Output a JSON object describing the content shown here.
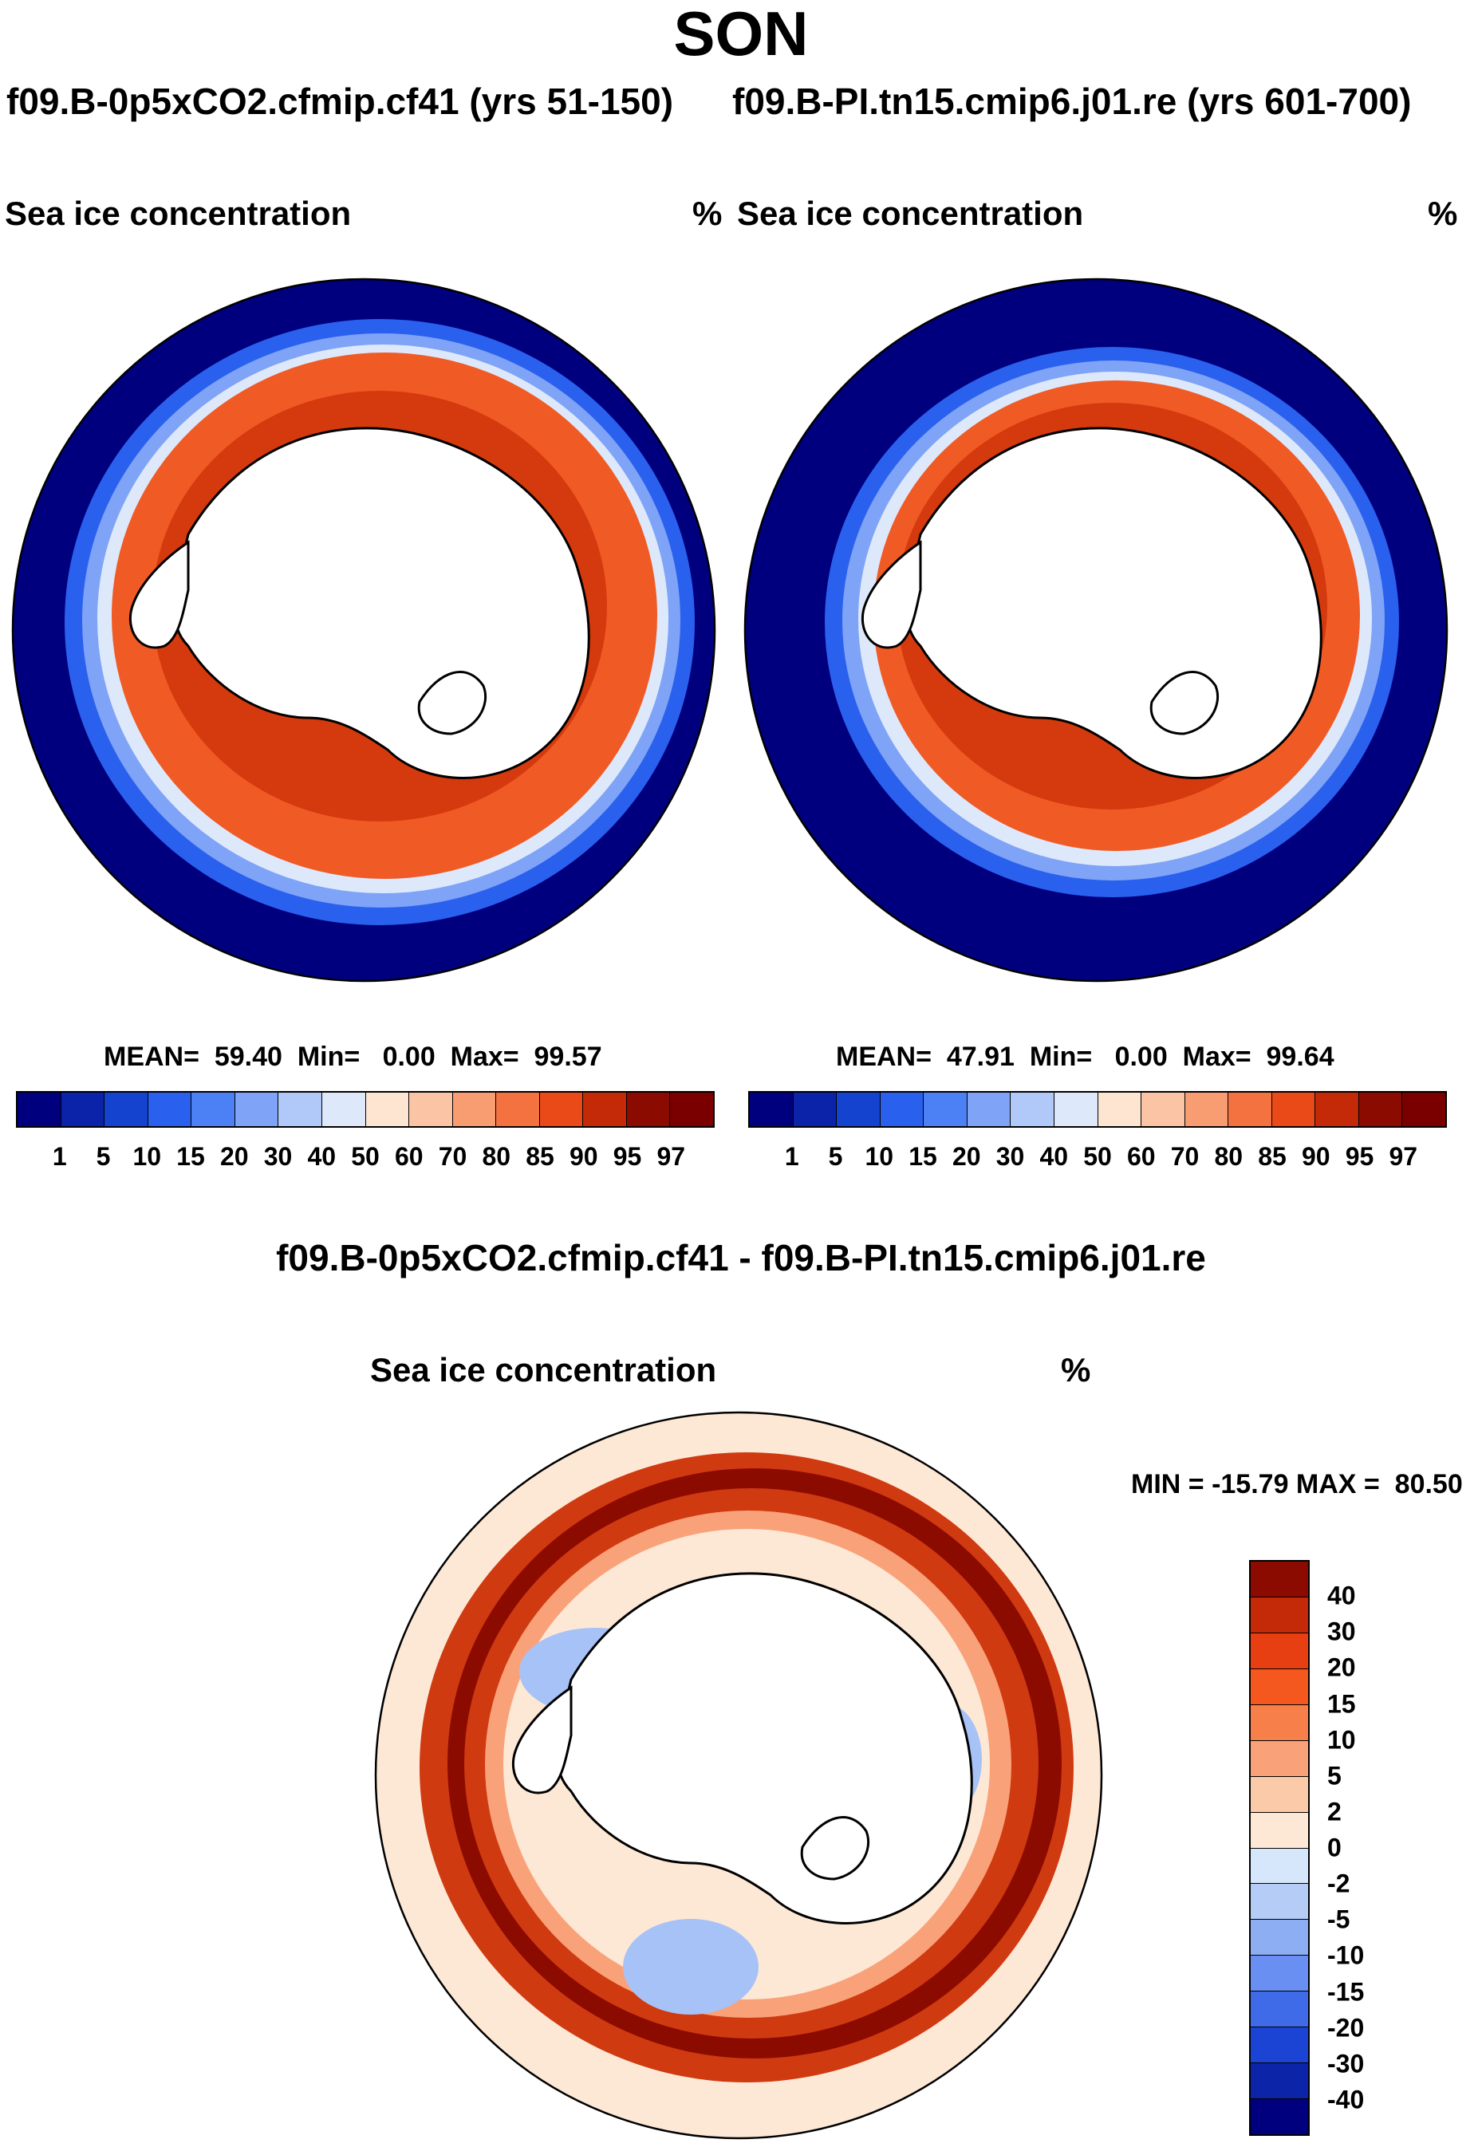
{
  "figure": {
    "season": "SON",
    "case_a": "f09.B-0p5xCO2.cfmip.cf41 (yrs 51-150)",
    "case_b": "f09.B-PI.tn15.cmip6.j01.re (yrs 601-700)",
    "diff_title": "f09.B-0p5xCO2.cfmip.cf41 - f09.B-PI.tn15.cmip6.j01.re"
  },
  "panels": {
    "left": {
      "variable": "Sea ice concentration",
      "units": "%",
      "stats": "MEAN=  59.40  Min=   0.00  Max=  99.57"
    },
    "right": {
      "variable": "Sea ice concentration",
      "units": "%",
      "stats": "MEAN=  47.91  Min=   0.00  Max=  99.64"
    },
    "diff": {
      "variable": "Sea ice concentration",
      "units": "%",
      "stats": "MIN = -15.79 MAX =  80.50"
    }
  },
  "colorbar_abs": {
    "labels": [
      "1",
      "5",
      "10",
      "15",
      "20",
      "30",
      "40",
      "50",
      "60",
      "70",
      "80",
      "85",
      "90",
      "95",
      "97"
    ],
    "colors": [
      "#00007f",
      "#0a23a8",
      "#1443d0",
      "#2a60ee",
      "#4c80f5",
      "#7fa3f7",
      "#b0c9f8",
      "#dde9fb",
      "#fde5d2",
      "#fbc4a5",
      "#f89d72",
      "#f47240",
      "#ea4a18",
      "#c52a08",
      "#8c0b00",
      "#7a0000"
    ]
  },
  "colorbar_diff": {
    "labels": [
      "40",
      "30",
      "20",
      "15",
      "10",
      "5",
      "2",
      "0",
      "-2",
      "-5",
      "-10",
      "-15",
      "-20",
      "-30",
      "-40"
    ],
    "colors": [
      "#8c0b00",
      "#c52a08",
      "#e83f12",
      "#f4581f",
      "#f77f4a",
      "#f9a27a",
      "#fbcaa9",
      "#fde8d6",
      "#d7e7fb",
      "#b5ccf7",
      "#8eaef4",
      "#6a8ff2",
      "#3f6ae8",
      "#1c44d4",
      "#0b24a8",
      "#00007f"
    ]
  },
  "maps": {
    "left": {
      "ocean_color": "#00007f",
      "ice_color": "#f05a25",
      "ice_core_color": "#d43a0d",
      "land_color": "#ffffff"
    },
    "right": {
      "ocean_color": "#00007f",
      "ice_color": "#f05a25",
      "ice_core_color": "#d43a0d",
      "land_color": "#ffffff"
    },
    "diff": {
      "base_color": "#fde8d6",
      "band_color": "#8c0b00",
      "band_mid_color": "#d03a10",
      "neg_color": "#a7c2f6",
      "land_color": "#ffffff"
    }
  }
}
